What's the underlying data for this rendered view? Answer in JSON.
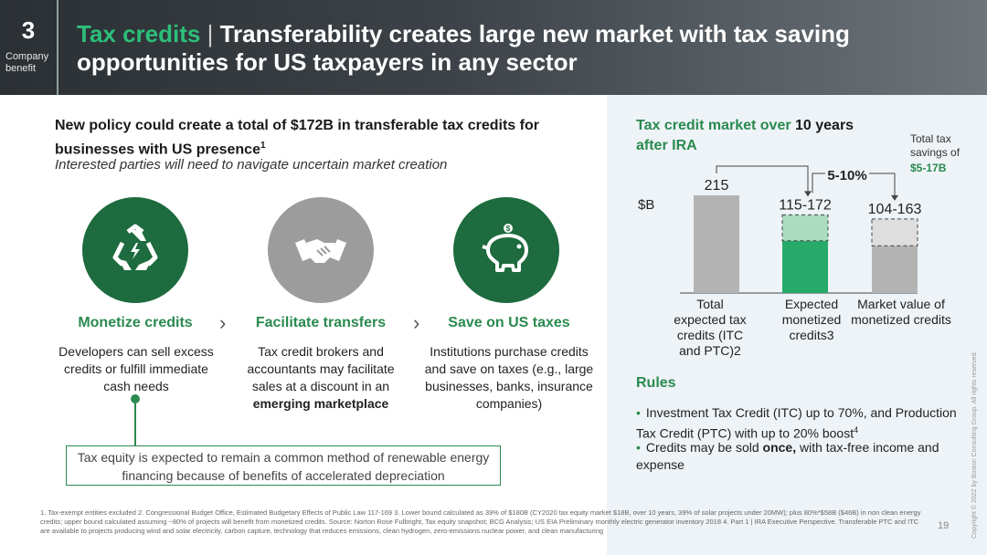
{
  "header": {
    "section_number": "3",
    "section_label": "Company benefit",
    "title_highlight": "Tax credits",
    "title_separator": "|",
    "title_rest": "Transferability creates large new market with tax saving opportunities for US taxpayers in any sector"
  },
  "intro": {
    "heading": "New policy could create a total of $172B in transferable tax credits for businesses with US presence",
    "heading_sup": "1",
    "subheading": "Interested parties will need to navigate uncertain market creation"
  },
  "steps": [
    {
      "icon": "recycle-energy-icon",
      "title": "Monetize credits",
      "desc": "Developers can sell excess credits or fulfill immediate cash needs"
    },
    {
      "icon": "handshake-icon",
      "title": "Facilitate transfers",
      "desc_pre": "Tax credit brokers and accountants may facilitate sales at a discount in an ",
      "desc_bold": "emerging marketplace"
    },
    {
      "icon": "piggy-bank-icon",
      "title": "Save on US taxes",
      "desc": "Institutions purchase credits and save on taxes (e.g., large businesses, banks, insurance companies)"
    }
  ],
  "equity_note": "Tax equity is expected to remain a common method of renewable energy financing because of benefits of accelerated depreciation",
  "chart_title_pre": "Tax credit market over ",
  "chart_title_bold": "10 years",
  "chart_title_post": "after IRA",
  "tax_savings_label": "Total tax savings of",
  "tax_savings_value": "$5-17B",
  "chart_data": {
    "type": "bar",
    "ylabel": "$B",
    "categories": [
      "Total expected tax credits (ITC and PTC)2",
      "Expected monetized credits3",
      "Market value of monetized credits"
    ],
    "labels": [
      "215",
      "115-172",
      "104-163"
    ],
    "low": [
      215,
      115,
      104
    ],
    "high": [
      215,
      172,
      163
    ],
    "ylim": [
      0,
      215
    ],
    "annotation": "5-10%",
    "colors": {
      "total": "#b3b3b3",
      "monetized": "#27a96a",
      "monetized_range": "#a9dcc0",
      "market": "#b3b3b3",
      "market_range": "#dedede"
    }
  },
  "rules": {
    "heading": "Rules",
    "items": [
      {
        "text": "Investment Tax Credit (ITC) up to 70%, and Production Tax Credit (PTC) with up to 20% boost",
        "sup": "4"
      },
      {
        "pre": "Credits may be sold ",
        "bold": "once,",
        "post": " with tax-free income and expense"
      }
    ]
  },
  "footnote": "1. Tax-exempt entities excluded 2. Congressional Budget Office, Estimated Budgetary Effects of Public Law 117-169 3. Lower bound calculated as 39% of $180B (CY2020 tax equity market $18B, over 10 years, 39% of solar projects under 20MW); plus 80%*$58B ($46B) in non clean energy credits; upper bound calculated assuming ~80% of projects will benefit from monetized credits. Source: Norton Rose Fulbright, Tax equity snapshot; BCG Analysis; US EIA Preliminary monthly electric generator inventory 2018 4. Part 1 | IRA Executive Perspective. Transferable PTC and ITC are available to projects producing wind and solar electricity, carbon capture, technology that reduces emissions, clean hydrogen, zero-emissions nuclear power, and clean manufacturing",
  "page_number": "19",
  "copyright": "Copyright © 2022 by Boston Consulting Group. All rights reserved."
}
